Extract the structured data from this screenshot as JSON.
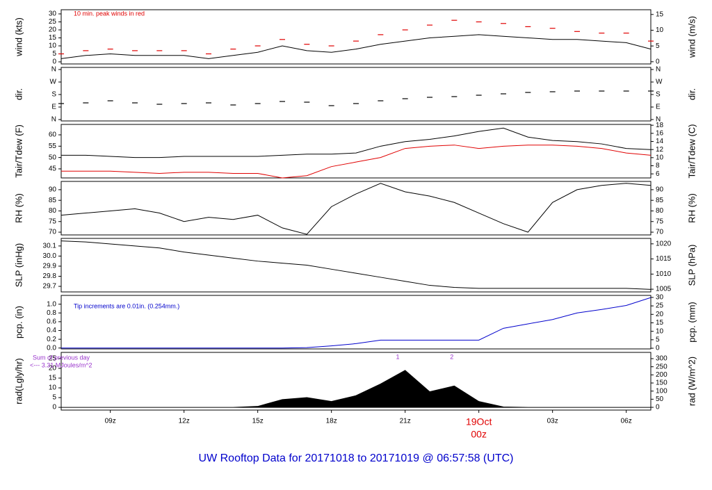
{
  "title": "UW Rooftop Data for 20171018  to  20171019 @ 06:57:58  (UTC)",
  "x_axis": {
    "xlim": [
      7,
      31
    ],
    "xticks": [
      {
        "value": 9,
        "label": "09z"
      },
      {
        "value": 12,
        "label": "12z"
      },
      {
        "value": 15,
        "label": "15z"
      },
      {
        "value": 18,
        "label": "18z"
      },
      {
        "value": 21,
        "label": "21z"
      },
      {
        "value": 24,
        "label": "00z"
      },
      {
        "value": 27,
        "label": "03z"
      },
      {
        "value": 30,
        "label": "06z"
      }
    ],
    "date_label": {
      "value": 24,
      "label": "19Oct"
    },
    "date_color": "#e00000",
    "x": [
      7,
      8,
      9,
      10,
      11,
      12,
      13,
      14,
      15,
      16,
      17,
      18,
      19,
      20,
      21,
      22,
      23,
      24,
      25,
      26,
      27,
      28,
      29,
      30,
      31
    ]
  },
  "chart_data": [
    {
      "type": "line",
      "ylabel": "wind (kts)",
      "y2label": "wind (m/s)",
      "ylim": [
        -1.3,
        32.6
      ],
      "yticks": [
        0,
        5,
        10,
        15,
        20,
        25,
        30
      ],
      "y2lim": [
        -0.7,
        16.5
      ],
      "y2ticks": [
        0,
        5,
        10,
        15
      ],
      "annotations": [
        {
          "text": "10 min. peak winds in red",
          "color": "#e00000"
        }
      ],
      "series": [
        {
          "color": "#000000",
          "values": [
            2,
            4,
            5,
            4,
            4,
            4,
            2,
            4,
            6,
            10,
            7,
            6,
            8,
            11,
            13,
            15,
            16,
            17,
            16,
            15,
            14,
            14,
            13,
            12,
            8
          ]
        },
        {
          "color": "#e00000",
          "marker": "dash",
          "values": [
            5,
            7,
            8,
            7,
            7,
            7,
            5,
            8,
            10,
            14,
            11,
            10,
            13,
            17,
            20,
            23,
            26,
            25,
            24,
            22,
            21,
            19,
            18,
            18,
            13
          ]
        }
      ]
    },
    {
      "type": "scatter",
      "ylabel": "dir.",
      "y2label": "dir.",
      "ylim": [
        -10,
        375
      ],
      "y2lim": [
        -10,
        375
      ],
      "yticks": [
        {
          "value": 0,
          "label": "N"
        },
        {
          "value": 90,
          "label": "E"
        },
        {
          "value": 180,
          "label": "S"
        },
        {
          "value": 270,
          "label": "W"
        },
        {
          "value": 360,
          "label": "N"
        }
      ],
      "y2ticks": [
        {
          "value": 0,
          "label": "N"
        },
        {
          "value": 90,
          "label": "E"
        },
        {
          "value": 180,
          "label": "S"
        },
        {
          "value": 270,
          "label": "W"
        },
        {
          "value": 360,
          "label": "N"
        }
      ],
      "series": [
        {
          "color": "#000000",
          "marker": "dash",
          "values": [
            115,
            120,
            135,
            120,
            110,
            115,
            120,
            105,
            115,
            130,
            125,
            100,
            115,
            135,
            150,
            160,
            165,
            175,
            185,
            195,
            200,
            205,
            205,
            205,
            205
          ]
        }
      ]
    },
    {
      "type": "line",
      "ylabel": "Tair/Tdew (F)",
      "y2label": "Tair/Tdew (C)",
      "ylim": [
        41,
        64.6
      ],
      "yticks": [
        45,
        50,
        55,
        60
      ],
      "y2lim": [
        5,
        18.2
      ],
      "y2ticks": [
        6,
        8,
        10,
        12,
        14,
        16,
        18
      ],
      "series": [
        {
          "color": "#000000",
          "values": [
            51,
            51,
            50.5,
            50,
            50,
            50.5,
            50.5,
            50.5,
            50.5,
            51,
            51.5,
            51.5,
            52,
            55,
            57,
            58,
            59.5,
            61.5,
            63,
            59,
            57.5,
            57,
            56,
            54,
            53.5
          ]
        },
        {
          "color": "#e00000",
          "values": [
            44,
            44,
            44,
            43.5,
            43,
            43.5,
            43.5,
            43,
            43,
            41,
            42,
            46,
            48,
            50,
            54,
            55,
            55.5,
            54,
            55,
            55.5,
            55.5,
            55,
            54,
            52,
            51
          ]
        }
      ]
    },
    {
      "type": "line",
      "ylabel": "RH (%)",
      "y2label": "RH (%)",
      "ylim": [
        68.7,
        93.9
      ],
      "yticks": [
        70,
        75,
        80,
        85,
        90
      ],
      "y2lim": [
        68.7,
        93.9
      ],
      "y2ticks": [
        70,
        75,
        80,
        85,
        90
      ],
      "series": [
        {
          "color": "#000000",
          "values": [
            78,
            79,
            80,
            81,
            79,
            75,
            77,
            76,
            78,
            72,
            69,
            82,
            88,
            93,
            89,
            87,
            84,
            79,
            74,
            70,
            84,
            90,
            92,
            93,
            92
          ]
        }
      ]
    },
    {
      "type": "line",
      "ylabel": "SLP (inHg)",
      "y2label": "SLP (hPa)",
      "ylim": [
        29.645,
        30.175
      ],
      "yticks": [
        29.7,
        29.8,
        29.9,
        {
          "value": 30,
          "label": "30.0"
        },
        30.1
      ],
      "y2lim": [
        1004.1,
        1021.8
      ],
      "y2ticks": [
        1005,
        1010,
        1015,
        1020
      ],
      "series": [
        {
          "color": "#000000",
          "values": [
            30.15,
            30.14,
            30.12,
            30.1,
            30.08,
            30.04,
            30.01,
            29.98,
            29.95,
            29.93,
            29.91,
            29.87,
            29.83,
            29.79,
            29.75,
            29.71,
            29.69,
            29.68,
            29.68,
            29.68,
            29.68,
            29.68,
            29.68,
            29.68,
            29.67
          ]
        }
      ]
    },
    {
      "type": "line",
      "ylabel": "pcp. (in)",
      "y2label": "pcp. (mm)",
      "ylim": [
        -0.02,
        1.2
      ],
      "yticks": [
        {
          "value": 0,
          "label": "0.0"
        },
        0.2,
        0.4,
        0.6,
        0.8,
        {
          "value": 1,
          "label": "1.0"
        }
      ],
      "y2lim": [
        -0.4,
        31.2
      ],
      "y2ticks": [
        0,
        5,
        10,
        15,
        20,
        25,
        30
      ],
      "annotations": [
        {
          "text": "Tip increments are 0.01in. (0.254mm.)",
          "color": "#0000cc"
        }
      ],
      "series": [
        {
          "color": "#0000cc",
          "values": [
            0,
            0,
            0,
            0,
            0,
            0,
            0,
            0,
            0,
            0,
            0.01,
            0.05,
            0.1,
            0.18,
            0.18,
            0.18,
            0.18,
            0.18,
            0.45,
            0.55,
            0.65,
            0.8,
            0.88,
            0.97,
            1.15
          ]
        }
      ]
    },
    {
      "type": "area",
      "ylabel": "rad(Lgly/hr)",
      "y2label": "rad (W/m^2)",
      "ylim": [
        -1.4,
        28.2
      ],
      "yticks": [
        {
          "value": 0,
          "label": "0"
        },
        5,
        10,
        15,
        20,
        25
      ],
      "y2lim": [
        -17,
        338.6
      ],
      "y2ticks": [
        0,
        50,
        100,
        150,
        200,
        250,
        300
      ],
      "annotations": [
        {
          "text": "Sum of previous day",
          "color": "#9933cc"
        },
        {
          "text": "<--- 3.31 MJoules/m^2",
          "color": "#9933cc"
        }
      ],
      "peak_labels": [
        {
          "x": 20.7,
          "label": "1"
        },
        {
          "x": 22.9,
          "label": "2"
        }
      ],
      "peak_label_color": "#9933cc",
      "series": [
        {
          "color": "#000000",
          "values": [
            0,
            0,
            0,
            0,
            0,
            0,
            0,
            0,
            0.5,
            4,
            5,
            3,
            6,
            12,
            19,
            8,
            11,
            3,
            0.2,
            0,
            0,
            0,
            0,
            0,
            0
          ]
        }
      ]
    }
  ]
}
